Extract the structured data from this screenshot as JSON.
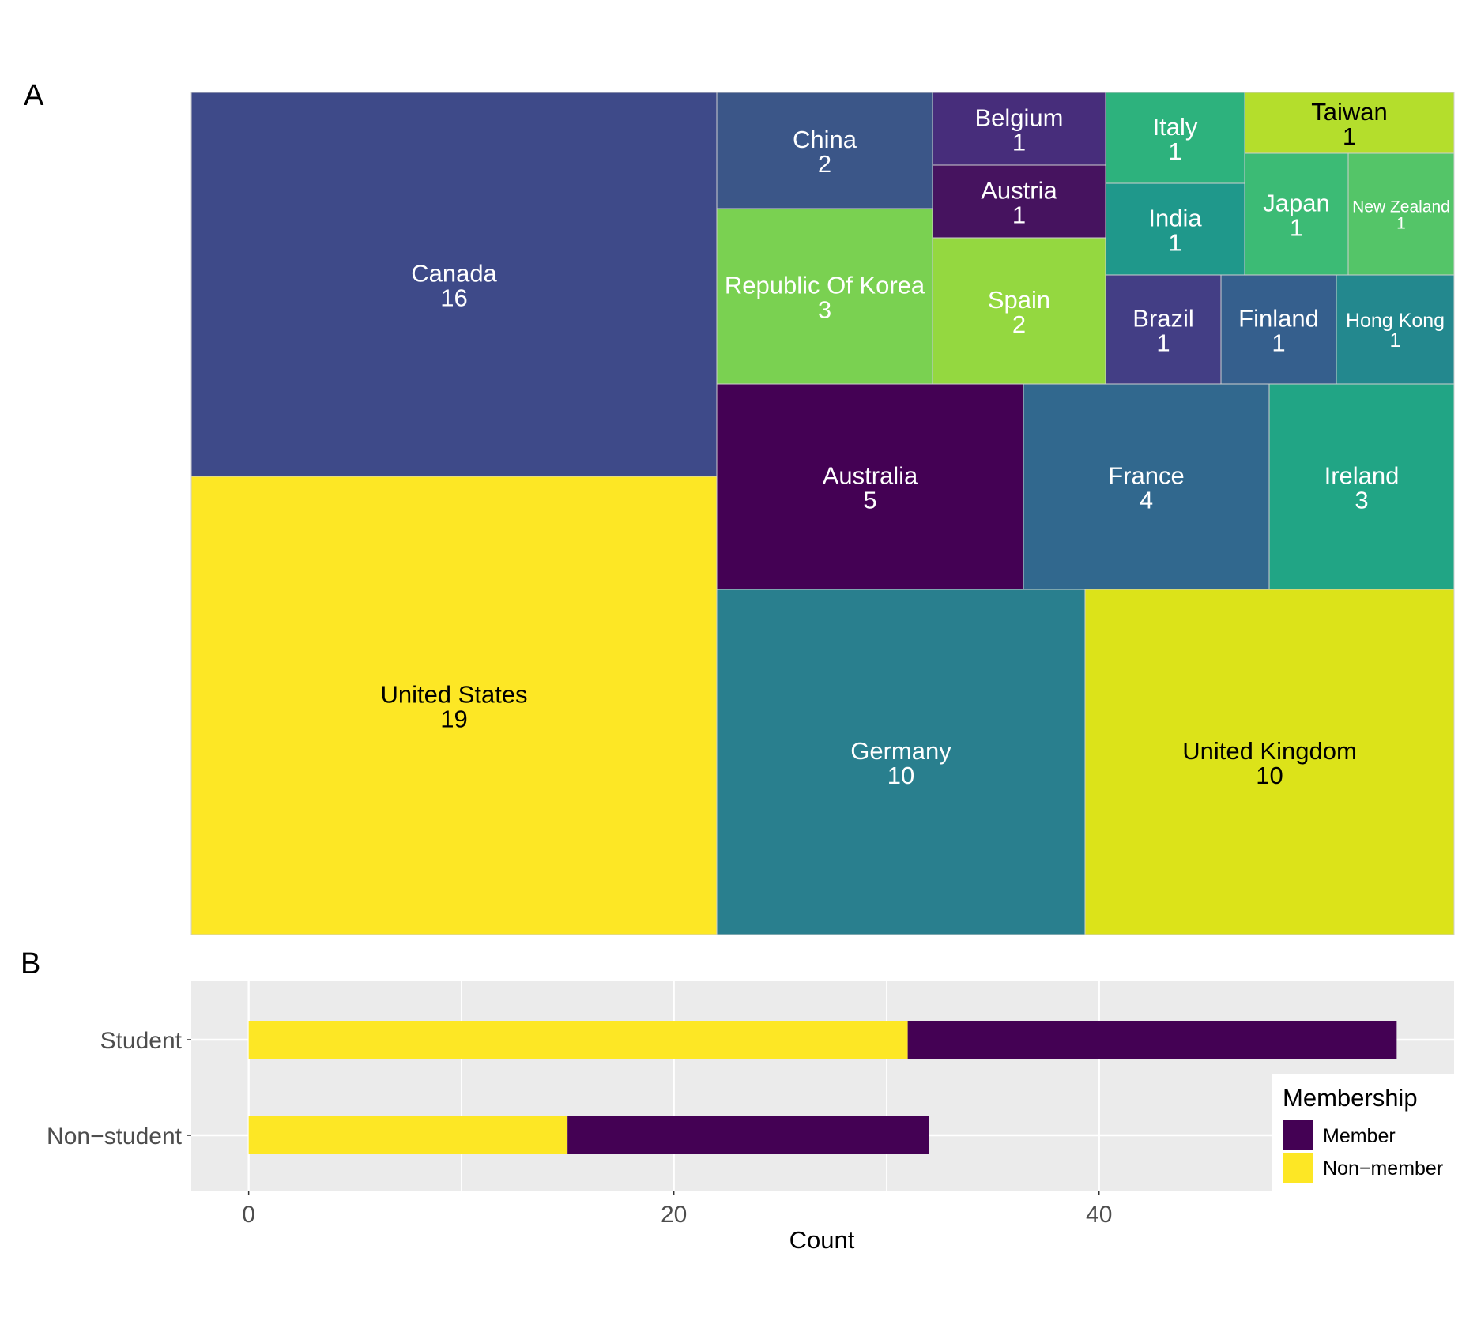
{
  "chart_data": [
    {
      "panel": "A",
      "type": "treemap",
      "tiles": [
        {
          "label": "United States",
          "value": 19,
          "color": "#FDE725",
          "text_color": "#000000"
        },
        {
          "label": "Canada",
          "value": 16,
          "color": "#3E4A89",
          "text_color": "#ffffff"
        },
        {
          "label": "Germany",
          "value": 10,
          "color": "#297F8E",
          "text_color": "#ffffff"
        },
        {
          "label": "United Kingdom",
          "value": 10,
          "color": "#DCE319",
          "text_color": "#000000"
        },
        {
          "label": "Australia",
          "value": 5,
          "color": "#440154",
          "text_color": "#ffffff"
        },
        {
          "label": "France",
          "value": 4,
          "color": "#31688E",
          "text_color": "#ffffff"
        },
        {
          "label": "Ireland",
          "value": 3,
          "color": "#21A585",
          "text_color": "#ffffff"
        },
        {
          "label": "Republic Of Korea",
          "value": 3,
          "color": "#7AD151",
          "text_color": "#ffffff"
        },
        {
          "label": "China",
          "value": 2,
          "color": "#3B5688",
          "text_color": "#ffffff"
        },
        {
          "label": "Spain",
          "value": 2,
          "color": "#94D840",
          "text_color": "#ffffff"
        },
        {
          "label": "Belgium",
          "value": 1,
          "color": "#472D7B",
          "text_color": "#ffffff"
        },
        {
          "label": "Austria",
          "value": 1,
          "color": "#46135F",
          "text_color": "#ffffff"
        },
        {
          "label": "Italy",
          "value": 1,
          "color": "#2DB27D",
          "text_color": "#ffffff"
        },
        {
          "label": "Taiwan",
          "value": 1,
          "color": "#B4DE2C",
          "text_color": "#000000"
        },
        {
          "label": "India",
          "value": 1,
          "color": "#1F988B",
          "text_color": "#ffffff"
        },
        {
          "label": "Japan",
          "value": 1,
          "color": "#3CBB75",
          "text_color": "#ffffff"
        },
        {
          "label": "New Zealand",
          "value": 1,
          "color": "#54C568",
          "text_color": "#ffffff"
        },
        {
          "label": "Brazil",
          "value": 1,
          "color": "#433E85",
          "text_color": "#ffffff"
        },
        {
          "label": "Finland",
          "value": 1,
          "color": "#355F8D",
          "text_color": "#ffffff"
        },
        {
          "label": "Hong Kong",
          "value": 1,
          "color": "#23888E",
          "text_color": "#ffffff"
        }
      ]
    },
    {
      "panel": "B",
      "type": "bar",
      "orientation": "horizontal",
      "stacked": true,
      "categories": [
        "Student",
        "Non−student"
      ],
      "series": [
        {
          "name": "Non−member",
          "values": [
            31,
            15
          ],
          "color": "#FDE725"
        },
        {
          "name": "Member",
          "values": [
            23,
            17
          ],
          "color": "#440154"
        }
      ],
      "xlabel": "Count",
      "ylabel": "",
      "xlim": [
        -2.7,
        56.7
      ],
      "xticks": [
        0,
        20,
        40
      ],
      "xticks_labels": [
        "0",
        "20",
        "40"
      ],
      "grid": true,
      "legend": {
        "title": "Membership",
        "position": "bottom-right",
        "entries": [
          "Member",
          "Non−member"
        ]
      }
    }
  ]
}
